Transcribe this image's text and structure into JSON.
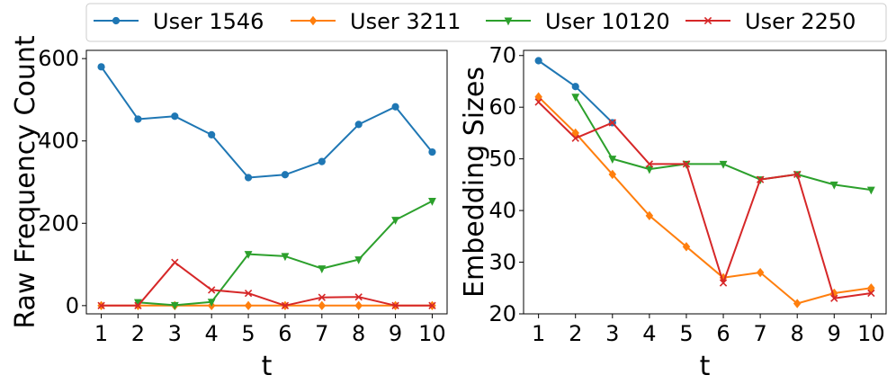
{
  "chart_data": [
    {
      "type": "line",
      "xlabel": "t",
      "ylabel": "Raw Frequency Count",
      "x": [
        1,
        2,
        3,
        4,
        5,
        6,
        7,
        8,
        9,
        10
      ],
      "xticks": [
        "1",
        "2",
        "3",
        "4",
        "5",
        "6",
        "7",
        "8",
        "9",
        "10"
      ],
      "ylim": [
        -20,
        620
      ],
      "yticks": [
        0,
        200,
        400,
        600
      ],
      "grid": false,
      "series": [
        {
          "name": "User 1546",
          "color": "#1f77b4",
          "marker": "circle",
          "values": [
            580,
            453,
            460,
            415,
            311,
            318,
            350,
            440,
            483,
            373
          ]
        },
        {
          "name": "User 3211",
          "color": "#ff7f0e",
          "marker": "diamond",
          "values": [
            0,
            0,
            0,
            0,
            0,
            0,
            0,
            0,
            0,
            0
          ]
        },
        {
          "name": "User 10120",
          "color": "#2ca02c",
          "marker": "triangle-down",
          "values": [
            null,
            8,
            1,
            9,
            125,
            120,
            90,
            112,
            208,
            254
          ]
        },
        {
          "name": "User 2250",
          "color": "#d62728",
          "marker": "x",
          "values": [
            0,
            0,
            105,
            38,
            30,
            0,
            20,
            21,
            0,
            0
          ]
        }
      ]
    },
    {
      "type": "line",
      "xlabel": "t",
      "ylabel": "Embedding Sizes",
      "x": [
        1,
        2,
        3,
        4,
        5,
        6,
        7,
        8,
        9,
        10
      ],
      "xticks": [
        "1",
        "2",
        "3",
        "4",
        "5",
        "6",
        "7",
        "8",
        "9",
        "10"
      ],
      "ylim": [
        20,
        71
      ],
      "yticks": [
        20,
        30,
        40,
        50,
        60,
        70
      ],
      "grid": false,
      "series": [
        {
          "name": "User 1546",
          "color": "#1f77b4",
          "marker": "circle",
          "values": [
            69,
            64,
            57,
            null,
            null,
            null,
            null,
            null,
            null,
            null
          ]
        },
        {
          "name": "User 3211",
          "color": "#ff7f0e",
          "marker": "diamond",
          "values": [
            62,
            55,
            47,
            39,
            33,
            27,
            28,
            22,
            24,
            25
          ]
        },
        {
          "name": "User 10120",
          "color": "#2ca02c",
          "marker": "triangle-down",
          "values": [
            null,
            62,
            50,
            48,
            49,
            49,
            46,
            47,
            45,
            44
          ]
        },
        {
          "name": "User 2250",
          "color": "#d62728",
          "marker": "x",
          "values": [
            61,
            54,
            57,
            49,
            49,
            26,
            46,
            47,
            23,
            24
          ]
        }
      ]
    }
  ],
  "legend": {
    "placement": "top-center",
    "entries": [
      {
        "label": "User 1546",
        "color": "#1f77b4",
        "marker": "circle"
      },
      {
        "label": "User 3211",
        "color": "#ff7f0e",
        "marker": "diamond"
      },
      {
        "label": "User 10120",
        "color": "#2ca02c",
        "marker": "triangle-down"
      },
      {
        "label": "User 2250",
        "color": "#d62728",
        "marker": "x"
      }
    ]
  }
}
